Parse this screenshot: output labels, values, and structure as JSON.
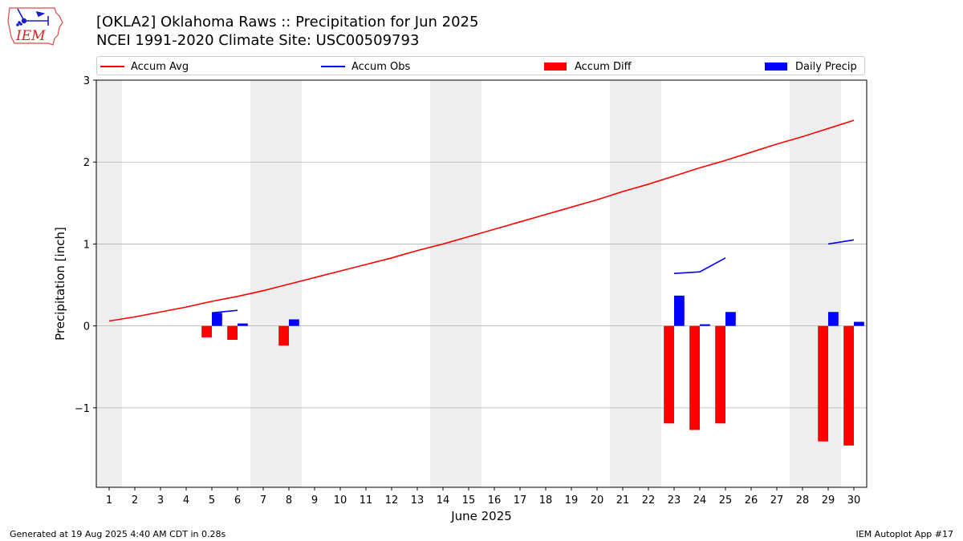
{
  "header": {
    "title_line1": "[OKLA2] Oklahoma Raws :: Precipitation for Jun 2025",
    "title_line2": "NCEI 1991-2020 Climate Site: USC00509793"
  },
  "logo": {
    "text": "IEM",
    "icon": "iowa-state-outline-icon"
  },
  "footer": {
    "left": "Generated at 19 Aug 2025 4:40 AM CDT in 0.28s",
    "right": "IEM Autoplot App #17"
  },
  "colors": {
    "accum_avg": "#ff0000",
    "accum_obs": "#0000ff",
    "accum_diff": "#ff0000",
    "daily_precip": "#0000ff",
    "weekend_shade": "#eeeeee",
    "grid": "#b0b0b0"
  },
  "chart_data": {
    "type": "bar",
    "xlabel": "June 2025",
    "ylabel": "Precipitation [inch]",
    "xlim": [
      0.5,
      30.5
    ],
    "ylim": [
      -1.97,
      3.0
    ],
    "yticks": [
      -1,
      0,
      1,
      2,
      3
    ],
    "ytick_labels": [
      "−1",
      "0",
      "1",
      "2",
      "3"
    ],
    "days": [
      1,
      2,
      3,
      4,
      5,
      6,
      7,
      8,
      9,
      10,
      11,
      12,
      13,
      14,
      15,
      16,
      17,
      18,
      19,
      20,
      21,
      22,
      23,
      24,
      25,
      26,
      27,
      28,
      29,
      30
    ],
    "weekend_spans": [
      [
        0.5,
        1.5
      ],
      [
        6.5,
        8.5
      ],
      [
        13.5,
        15.5
      ],
      [
        20.5,
        22.5
      ],
      [
        27.5,
        29.5
      ]
    ],
    "grid": true,
    "legend_placement": "top",
    "series": [
      {
        "name": "Accum Avg",
        "kind": "line",
        "values": [
          0.06,
          0.11,
          0.17,
          0.23,
          0.3,
          0.36,
          0.43,
          0.51,
          0.59,
          0.67,
          0.75,
          0.83,
          0.92,
          1.0,
          1.09,
          1.18,
          1.27,
          1.36,
          1.45,
          1.54,
          1.64,
          1.73,
          1.83,
          1.93,
          2.02,
          2.12,
          2.22,
          2.31,
          2.41,
          2.51
        ]
      },
      {
        "name": "Accum Obs",
        "kind": "line",
        "values": [
          null,
          null,
          null,
          null,
          0.16,
          0.19,
          null,
          null,
          null,
          null,
          null,
          null,
          null,
          null,
          null,
          null,
          null,
          null,
          null,
          null,
          null,
          null,
          0.64,
          0.66,
          0.83,
          null,
          null,
          null,
          1.0,
          1.05
        ]
      },
      {
        "name": "Accum Diff",
        "kind": "bar",
        "values": [
          null,
          null,
          null,
          null,
          -0.14,
          -0.17,
          null,
          -0.24,
          null,
          null,
          null,
          null,
          null,
          null,
          null,
          null,
          null,
          null,
          null,
          null,
          null,
          null,
          -1.19,
          -1.27,
          -1.19,
          null,
          null,
          null,
          -1.41,
          -1.46
        ]
      },
      {
        "name": "Daily Precip",
        "kind": "bar",
        "values": [
          null,
          null,
          null,
          null,
          0.16,
          0.03,
          null,
          0.08,
          null,
          null,
          null,
          null,
          null,
          null,
          null,
          null,
          null,
          null,
          null,
          null,
          null,
          null,
          0.37,
          0.02,
          0.17,
          null,
          null,
          null,
          0.17,
          0.05
        ]
      }
    ]
  }
}
